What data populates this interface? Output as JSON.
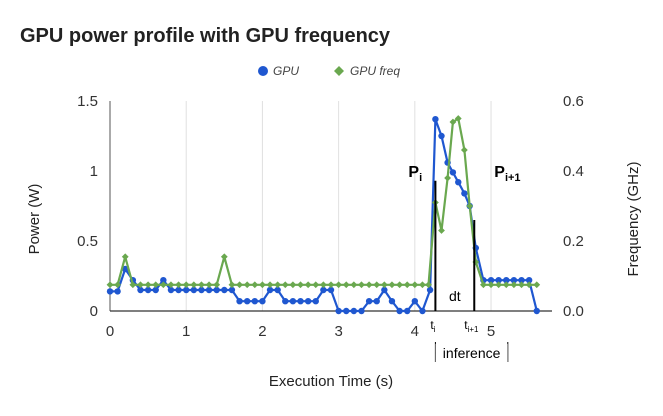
{
  "chart_data": {
    "type": "line",
    "title": "GPU power profile with GPU frequency",
    "xlabel": "Execution Time (s)",
    "ylabel": "Power (W)",
    "y2label": "Frequency (GHz)",
    "xlim": [
      0,
      5.8
    ],
    "ylim": [
      0,
      1.5
    ],
    "y2lim": [
      0,
      0.6
    ],
    "xticks": [
      0,
      1,
      2,
      3,
      4,
      5
    ],
    "yticks": [
      0,
      0.5,
      1,
      1.5
    ],
    "y2ticks": [
      0.0,
      0.2,
      0.4,
      0.6
    ],
    "ytick_labels": [
      "0",
      "0.5",
      "1",
      "1.5"
    ],
    "y2tick_labels": [
      "0.0",
      "0.2",
      "0.4",
      "0.6"
    ],
    "grid": "vertical",
    "legend_position": "top-center",
    "series": [
      {
        "name": "GPU",
        "axis": "left",
        "color": "#1f57d0",
        "marker": "circle",
        "x": [
          0.0,
          0.1,
          0.2,
          0.3,
          0.4,
          0.5,
          0.6,
          0.7,
          0.8,
          0.9,
          1.0,
          1.1,
          1.2,
          1.3,
          1.4,
          1.5,
          1.6,
          1.7,
          1.8,
          1.9,
          2.0,
          2.1,
          2.2,
          2.3,
          2.4,
          2.5,
          2.6,
          2.7,
          2.8,
          2.9,
          3.0,
          3.1,
          3.2,
          3.3,
          3.4,
          3.5,
          3.6,
          3.7,
          3.8,
          3.9,
          4.0,
          4.1,
          4.2,
          4.27,
          4.35,
          4.43,
          4.5,
          4.57,
          4.65,
          4.72,
          4.8,
          4.9,
          5.0,
          5.1,
          5.2,
          5.3,
          5.4,
          5.5,
          5.6
        ],
        "values": [
          0.14,
          0.14,
          0.3,
          0.22,
          0.15,
          0.15,
          0.15,
          0.22,
          0.15,
          0.15,
          0.15,
          0.15,
          0.15,
          0.15,
          0.15,
          0.15,
          0.15,
          0.07,
          0.07,
          0.07,
          0.07,
          0.15,
          0.15,
          0.07,
          0.07,
          0.07,
          0.07,
          0.07,
          0.15,
          0.15,
          0.0,
          0.0,
          0.0,
          0.0,
          0.07,
          0.07,
          0.15,
          0.07,
          0.0,
          0.0,
          0.07,
          0.0,
          0.15,
          1.37,
          1.25,
          1.06,
          0.99,
          0.92,
          0.84,
          0.75,
          0.45,
          0.22,
          0.22,
          0.22,
          0.22,
          0.22,
          0.22,
          0.22,
          0.0
        ]
      },
      {
        "name": "GPU freq",
        "axis": "right",
        "color": "#6aa84f",
        "marker": "diamond",
        "x": [
          0.0,
          0.1,
          0.2,
          0.3,
          0.4,
          0.5,
          0.6,
          0.7,
          0.8,
          0.9,
          1.0,
          1.1,
          1.2,
          1.3,
          1.4,
          1.5,
          1.6,
          1.7,
          1.8,
          1.9,
          2.0,
          2.1,
          2.2,
          2.3,
          2.4,
          2.5,
          2.6,
          2.7,
          2.8,
          2.9,
          3.0,
          3.1,
          3.2,
          3.3,
          3.4,
          3.5,
          3.6,
          3.7,
          3.8,
          3.9,
          4.0,
          4.1,
          4.18,
          4.27,
          4.35,
          4.43,
          4.5,
          4.57,
          4.65,
          4.72,
          4.8,
          4.9,
          5.0,
          5.1,
          5.2,
          5.3,
          5.4,
          5.5,
          5.6
        ],
        "values": [
          0.075,
          0.075,
          0.155,
          0.075,
          0.075,
          0.075,
          0.075,
          0.075,
          0.075,
          0.075,
          0.075,
          0.075,
          0.075,
          0.075,
          0.075,
          0.155,
          0.075,
          0.075,
          0.075,
          0.075,
          0.075,
          0.075,
          0.075,
          0.075,
          0.075,
          0.075,
          0.075,
          0.075,
          0.075,
          0.075,
          0.075,
          0.075,
          0.075,
          0.075,
          0.075,
          0.075,
          0.075,
          0.075,
          0.075,
          0.075,
          0.075,
          0.075,
          0.075,
          0.31,
          0.23,
          0.38,
          0.54,
          0.55,
          0.46,
          0.3,
          0.14,
          0.075,
          0.075,
          0.075,
          0.075,
          0.075,
          0.075,
          0.075,
          0.075
        ]
      }
    ],
    "annotations": {
      "p_i": "P",
      "p_i_sub": "i",
      "p_next": "P",
      "p_next_sub": "i+1",
      "t_i": "t",
      "t_i_sub": "i",
      "t_next": "t",
      "t_next_sub": "i+1",
      "dt": "dt",
      "inference": "inference",
      "t_i_x": 4.27,
      "t_next_x": 4.78,
      "inference_start_x": 4.27,
      "inference_end_x": 5.22
    }
  }
}
